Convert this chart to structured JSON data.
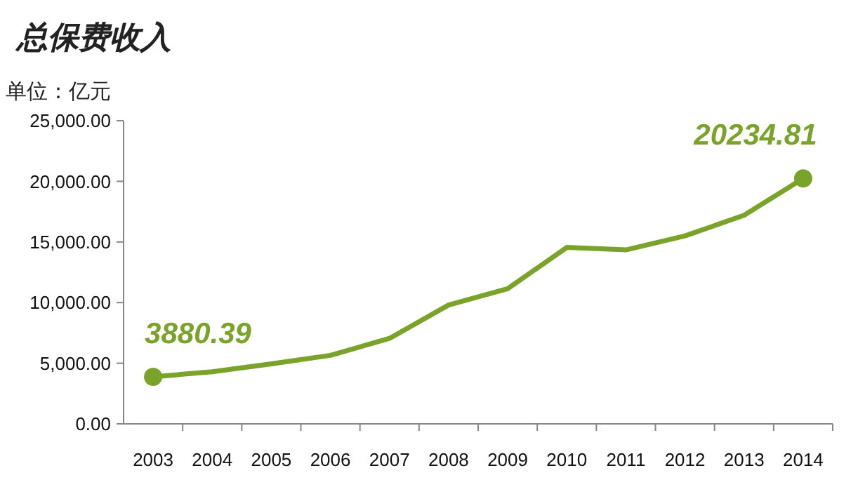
{
  "chart_data": {
    "type": "line",
    "title": "总保费收入",
    "ylabel": "单位：亿元",
    "categories": [
      "2003",
      "2004",
      "2005",
      "2006",
      "2007",
      "2008",
      "2009",
      "2010",
      "2011",
      "2012",
      "2013",
      "2014"
    ],
    "series": [
      {
        "color": "#7aa32a",
        "values": [
          3880.39,
          4300,
          4950,
          5650,
          7050,
          9800,
          11150,
          14550,
          14350,
          15500,
          17200,
          20234.81
        ],
        "value_labels": [
          "3880.39",
          null,
          null,
          null,
          null,
          null,
          null,
          null,
          null,
          null,
          null,
          "20234.81"
        ]
      }
    ],
    "ylim": [
      0,
      25000
    ],
    "yticks": [
      {
        "value": 0,
        "label": "0.00"
      },
      {
        "value": 5000,
        "label": "5,000.00"
      },
      {
        "value": 10000,
        "label": "10,000.00"
      },
      {
        "value": 15000,
        "label": "15,000.00"
      },
      {
        "value": 20000,
        "label": "20,000.00"
      },
      {
        "value": 25000,
        "label": "25,000.00"
      }
    ],
    "grid": false
  }
}
